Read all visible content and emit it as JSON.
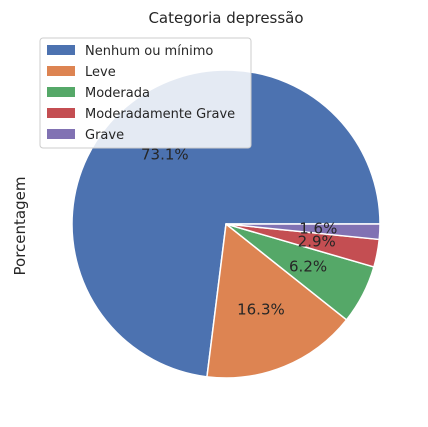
{
  "chart_data": {
    "type": "pie",
    "title": "Categoria depressão",
    "ylabel": "Porcentagem",
    "categories": [
      "Nenhum ou mínimo",
      "Leve",
      "Moderada",
      "Moderadamente Grave",
      "Grave"
    ],
    "values": [
      73.1,
      16.3,
      6.2,
      2.9,
      1.6
    ],
    "value_labels": [
      "73.1%",
      "16.3%",
      "6.2%",
      "2.9%",
      "1.6%"
    ],
    "colors": [
      "#4c72b0",
      "#dd8452",
      "#55a868",
      "#c44e52",
      "#8172b3"
    ],
    "start_angle": "0 degrees (3 o'clock), counterclockwise",
    "legend_position": "upper-left"
  }
}
